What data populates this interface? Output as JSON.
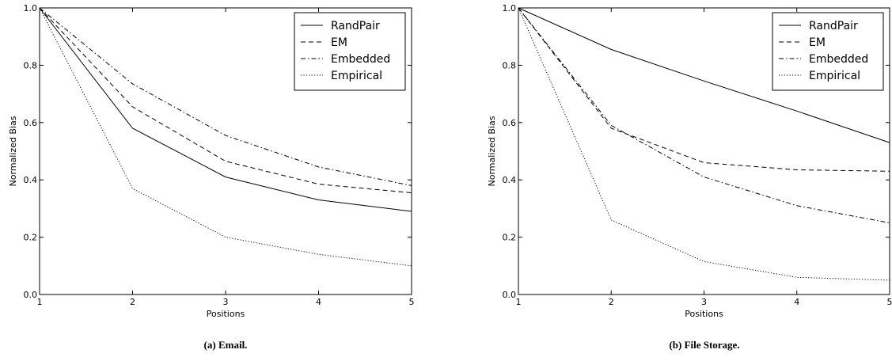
{
  "chart_data": [
    {
      "type": "line",
      "caption": "(a) Email.",
      "xlabel": "Positions",
      "ylabel": "Normalized Bias",
      "xlim": [
        1,
        5
      ],
      "ylim": [
        0.0,
        1.0
      ],
      "x_ticks": [
        1,
        2,
        3,
        4,
        5
      ],
      "y_ticks": [
        "0.0",
        "0.2",
        "0.4",
        "0.6",
        "0.8",
        "1.0"
      ],
      "legend_position": "top-right",
      "grid": false,
      "x": [
        1,
        2,
        3,
        4,
        5
      ],
      "series": [
        {
          "name": "RandPair",
          "style": "solid",
          "values": [
            1.0,
            0.58,
            0.41,
            0.33,
            0.29
          ]
        },
        {
          "name": "EM",
          "style": "dashed",
          "values": [
            1.0,
            0.655,
            0.465,
            0.385,
            0.355
          ]
        },
        {
          "name": "Embedded",
          "style": "dashdot",
          "values": [
            1.0,
            0.735,
            0.555,
            0.445,
            0.38
          ]
        },
        {
          "name": "Empirical",
          "style": "dotted",
          "values": [
            1.0,
            0.37,
            0.2,
            0.14,
            0.1
          ]
        }
      ]
    },
    {
      "type": "line",
      "caption": "(b) File Storage.",
      "xlabel": "Positions",
      "ylabel": "Normalized Bias",
      "xlim": [
        1,
        5
      ],
      "ylim": [
        0.0,
        1.0
      ],
      "x_ticks": [
        1,
        2,
        3,
        4,
        5
      ],
      "y_ticks": [
        "0.0",
        "0.2",
        "0.4",
        "0.6",
        "0.8",
        "1.0"
      ],
      "legend_position": "top-right",
      "grid": false,
      "x": [
        1,
        2,
        3,
        4,
        5
      ],
      "series": [
        {
          "name": "RandPair",
          "style": "solid",
          "values": [
            1.0,
            0.855,
            0.745,
            0.64,
            0.53
          ]
        },
        {
          "name": "EM",
          "style": "dashed",
          "values": [
            1.0,
            0.58,
            0.46,
            0.435,
            0.43
          ]
        },
        {
          "name": "Embedded",
          "style": "dashdot",
          "values": [
            1.0,
            0.59,
            0.41,
            0.31,
            0.25
          ]
        },
        {
          "name": "Empirical",
          "style": "dotted",
          "values": [
            1.0,
            0.26,
            0.115,
            0.06,
            0.05
          ]
        }
      ]
    }
  ]
}
